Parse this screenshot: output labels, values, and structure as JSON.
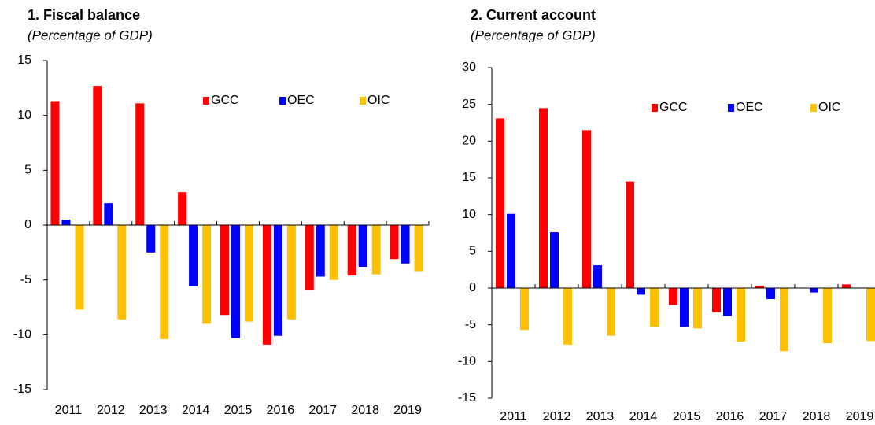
{
  "chart_data": [
    {
      "type": "bar",
      "title": "1. Fiscal balance",
      "subtitle": "(Percentage of GDP)",
      "categories": [
        "2011",
        "2012",
        "2013",
        "2014",
        "2015",
        "2016",
        "2017",
        "2018",
        "2019"
      ],
      "series": [
        {
          "name": "GCC",
          "color": "#ff0000",
          "values": [
            11.3,
            12.7,
            11.1,
            3.0,
            -8.2,
            -10.9,
            -5.9,
            -4.6,
            -3.1
          ]
        },
        {
          "name": "OEC",
          "color": "#0000ff",
          "values": [
            0.5,
            2.0,
            -2.5,
            -5.6,
            -10.3,
            -10.1,
            -4.7,
            -3.8,
            -3.5
          ]
        },
        {
          "name": "OIC",
          "color": "#ffc000",
          "values": [
            -7.7,
            -8.6,
            -10.4,
            -9.0,
            -8.8,
            -8.6,
            -5.0,
            -4.5,
            -4.2
          ]
        }
      ],
      "ylim": [
        -15,
        15
      ],
      "yticks": [
        -15,
        -10,
        -5,
        0,
        5,
        10,
        15
      ],
      "legend": "top-right"
    },
    {
      "type": "bar",
      "title": "2. Current account",
      "subtitle": "(Percentage of GDP)",
      "categories": [
        "2011",
        "2012",
        "2013",
        "2014",
        "2015",
        "2016",
        "2017",
        "2018",
        "2019"
      ],
      "series": [
        {
          "name": "GCC",
          "color": "#ff0000",
          "values": [
            23.1,
            24.5,
            21.5,
            14.5,
            -2.3,
            -3.3,
            0.3,
            0,
            0.5
          ]
        },
        {
          "name": "OEC",
          "color": "#0000ff",
          "values": [
            10.1,
            7.6,
            3.1,
            -0.9,
            -5.3,
            -3.8,
            -1.5,
            -0.6,
            0
          ]
        },
        {
          "name": "OIC",
          "color": "#ffc000",
          "values": [
            -5.7,
            -7.7,
            -6.5,
            -5.3,
            -5.5,
            -7.3,
            -8.6,
            -7.5,
            -7.2
          ]
        }
      ],
      "ylim": [
        -15,
        30
      ],
      "yticks": [
        -15,
        -10,
        -5,
        0,
        5,
        10,
        15,
        20,
        25,
        30
      ],
      "legend": "top-right"
    }
  ]
}
